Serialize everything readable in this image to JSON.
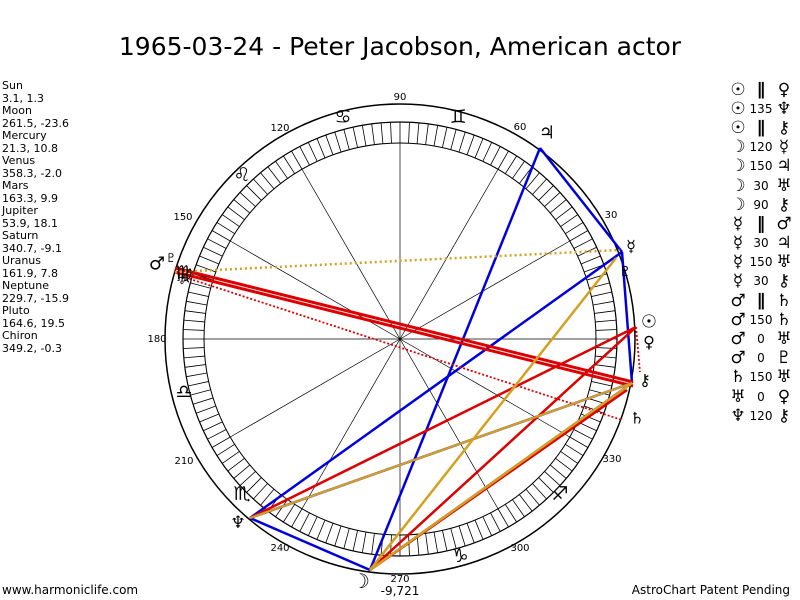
{
  "title": "1965-03-24 - Peter Jacobson, American actor",
  "planets": [
    {
      "name": "Sun",
      "coords": "3.1, 1.3"
    },
    {
      "name": "Moon",
      "coords": "261.5, -23.6"
    },
    {
      "name": "Mercury",
      "coords": "21.3, 10.8"
    },
    {
      "name": "Venus",
      "coords": "358.3, -2.0"
    },
    {
      "name": "Mars",
      "coords": "163.3, 9.9"
    },
    {
      "name": "Jupiter",
      "coords": "53.9, 18.1"
    },
    {
      "name": "Saturn",
      "coords": "340.7, -9.1"
    },
    {
      "name": "Uranus",
      "coords": "161.9, 7.8"
    },
    {
      "name": "Neptune",
      "coords": "229.7, -15.9"
    },
    {
      "name": "Pluto",
      "coords": "164.6, 19.5"
    },
    {
      "name": "Chiron",
      "coords": "349.2, -0.3"
    }
  ],
  "aspects": [
    {
      "p1": "☉",
      "type": "∥",
      "p2": "♀"
    },
    {
      "p1": "☉",
      "type": "135",
      "p2": "♆"
    },
    {
      "p1": "☉",
      "type": "∥",
      "p2": "⚷"
    },
    {
      "p1": "☽",
      "type": "120",
      "p2": "☿"
    },
    {
      "p1": "☽",
      "type": "150",
      "p2": "♃"
    },
    {
      "p1": "☽",
      "type": "30",
      "p2": "♅"
    },
    {
      "p1": "☽",
      "type": "90",
      "p2": "⚷"
    },
    {
      "p1": "☿",
      "type": "‖",
      "p2": "♂"
    },
    {
      "p1": "☿",
      "type": "30",
      "p2": "♃"
    },
    {
      "p1": "☿",
      "type": "150",
      "p2": "♅"
    },
    {
      "p1": "☿",
      "type": "30",
      "p2": "⚷"
    },
    {
      "p1": "♂",
      "type": "∥",
      "p2": "♄"
    },
    {
      "p1": "♂",
      "type": "150",
      "p2": "♄"
    },
    {
      "p1": "♂",
      "type": "0",
      "p2": "♅"
    },
    {
      "p1": "♂",
      "type": "0",
      "p2": "♇"
    },
    {
      "p1": "♄",
      "type": "150",
      "p2": "♅"
    },
    {
      "p1": "♅",
      "type": "0",
      "p2": "♀"
    },
    {
      "p1": "♆",
      "type": "120",
      "p2": "⚷"
    }
  ],
  "degree_labels": [
    "90",
    "60",
    "30",
    "180",
    "150",
    "120",
    "210",
    "240",
    "270",
    "300",
    "330"
  ],
  "bottom_value": "-9,721",
  "zodiac_signs": [
    "♋",
    "♊",
    "♌",
    "♍",
    "♎",
    "♏",
    "♐",
    "♑"
  ],
  "chart_planets": {
    "sun": "☉",
    "moon": "☽",
    "mercury": "☿",
    "venus": "♀",
    "mars": "♂",
    "jupiter": "♃",
    "saturn": "♄",
    "uranus": "♅",
    "neptune": "♆",
    "pluto": "♇",
    "chiron": "⚷"
  },
  "colors": {
    "blue": "#0000dd",
    "red": "#dd0000",
    "gold": "#d4a020"
  },
  "footer_left": "www.harmoniclife.com",
  "footer_right": "AstroChart Patent Pending"
}
